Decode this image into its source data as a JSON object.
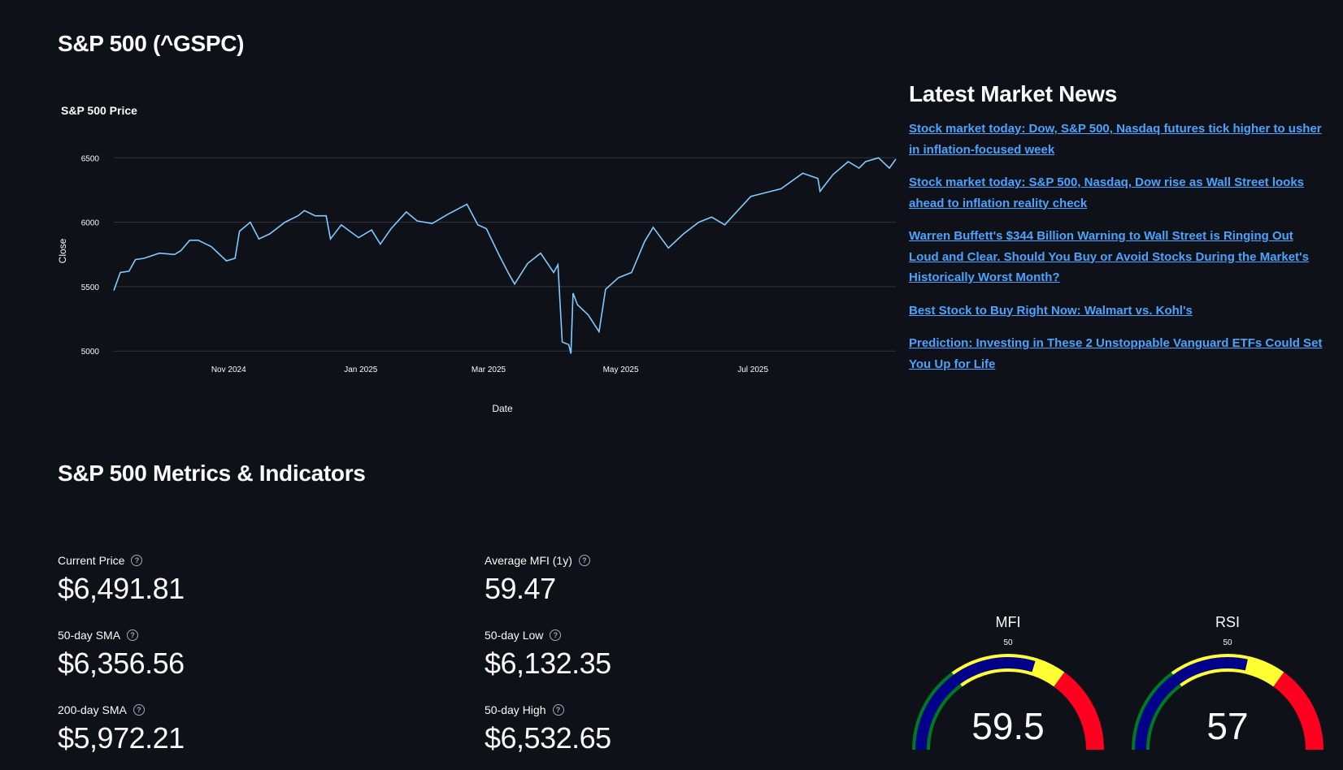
{
  "page": {
    "title": "S&P 500 (^GSPC)"
  },
  "chart_data": {
    "type": "line",
    "title": "S&P 500 Price",
    "xlabel": "Date",
    "ylabel": "Close",
    "ylim": [
      4970,
      6590
    ],
    "yticks": [
      5000,
      5500,
      6000,
      6500
    ],
    "xticks": [
      {
        "date": "2024-11-01",
        "label": "Nov 2024"
      },
      {
        "date": "2025-01-01",
        "label": "Jan 2025"
      },
      {
        "date": "2025-03-01",
        "label": "Mar 2025"
      },
      {
        "date": "2025-05-01",
        "label": "May 2025"
      },
      {
        "date": "2025-07-01",
        "label": "Jul 2025"
      }
    ],
    "xrange": [
      "2024-09-09",
      "2025-09-05"
    ],
    "line_color": "#83c9ff",
    "series": [
      {
        "x": [
          "2024-09-09",
          "2024-09-12",
          "2024-09-16",
          "2024-09-19",
          "2024-09-23",
          "2024-09-30",
          "2024-10-07",
          "2024-10-10",
          "2024-10-14",
          "2024-10-18",
          "2024-10-24",
          "2024-10-31",
          "2024-11-04",
          "2024-11-06",
          "2024-11-11",
          "2024-11-15",
          "2024-11-20",
          "2024-11-27",
          "2024-12-03",
          "2024-12-06",
          "2024-12-11",
          "2024-12-16",
          "2024-12-18",
          "2024-12-23",
          "2024-12-31",
          "2025-01-06",
          "2025-01-10",
          "2025-01-15",
          "2025-01-22",
          "2025-01-27",
          "2025-02-03",
          "2025-02-10",
          "2025-02-19",
          "2025-02-24",
          "2025-02-28",
          "2025-03-06",
          "2025-03-10",
          "2025-03-13",
          "2025-03-19",
          "2025-03-25",
          "2025-03-31",
          "2025-04-02",
          "2025-04-04",
          "2025-04-07",
          "2025-04-08",
          "2025-04-09",
          "2025-04-11",
          "2025-04-16",
          "2025-04-21",
          "2025-04-24",
          "2025-04-30",
          "2025-05-06",
          "2025-05-12",
          "2025-05-16",
          "2025-05-23",
          "2025-05-30",
          "2025-06-06",
          "2025-06-12",
          "2025-06-18",
          "2025-06-24",
          "2025-06-30",
          "2025-07-07",
          "2025-07-14",
          "2025-07-24",
          "2025-07-31",
          "2025-08-01",
          "2025-08-07",
          "2025-08-14",
          "2025-08-19",
          "2025-08-22",
          "2025-08-28",
          "2025-09-02",
          "2025-09-05"
        ],
        "y": [
          5470,
          5610,
          5620,
          5710,
          5720,
          5760,
          5750,
          5780,
          5860,
          5860,
          5810,
          5700,
          5720,
          5930,
          6000,
          5870,
          5910,
          6000,
          6050,
          6090,
          6050,
          6050,
          5870,
          5980,
          5880,
          5940,
          5830,
          5950,
          6080,
          6010,
          5990,
          6060,
          6140,
          5980,
          5950,
          5740,
          5610,
          5520,
          5680,
          5760,
          5610,
          5670,
          5070,
          5050,
          4980,
          5450,
          5360,
          5280,
          5150,
          5480,
          5570,
          5610,
          5850,
          5960,
          5800,
          5910,
          6000,
          6040,
          5980,
          6090,
          6200,
          6230,
          6260,
          6380,
          6340,
          6240,
          6370,
          6470,
          6420,
          6470,
          6500,
          6420,
          6490
        ]
      }
    ]
  },
  "news": {
    "title": "Latest Market News",
    "items": [
      "Stock market today: Dow, S&P 500, Nasdaq futures tick higher to usher in inflation-focused week",
      "Stock market today: S&P 500, Nasdaq, Dow rise as Wall Street looks ahead to inflation reality check",
      "Warren Buffett's $344 Billion Warning to Wall Street is Ringing Out Loud and Clear. Should You Buy or Avoid Stocks During the Market's Historically Worst Month?",
      "Best Stock to Buy Right Now: Walmart vs. Kohl's",
      "Prediction: Investing in These 2 Unstoppable Vanguard ETFs Could Set You Up for Life"
    ]
  },
  "metrics": {
    "title": "S&P 500 Metrics & Indicators",
    "current_price": {
      "label": "Current Price",
      "value": "$6,491.81"
    },
    "sma50": {
      "label": "50-day SMA",
      "value": "$6,356.56"
    },
    "sma200": {
      "label": "200-day SMA",
      "value": "$5,972.21"
    },
    "avg_mfi": {
      "label": "Average MFI (1y)",
      "value": "59.47"
    },
    "low50": {
      "label": "50-day Low",
      "value": "$6,132.35"
    },
    "high50": {
      "label": "50-day High",
      "value": "$6,532.65"
    }
  },
  "gauges": [
    {
      "title": "MFI",
      "value": 59.5,
      "display": "59.5",
      "tick": "50",
      "range": [
        0,
        100
      ]
    },
    {
      "title": "RSI",
      "value": 57,
      "display": "57",
      "tick": "50",
      "range": [
        0,
        100
      ]
    }
  ],
  "gauge_colors": {
    "low": "#00781e",
    "mid": "#ffff33",
    "high": "#ff0020",
    "bar": "#00008b"
  }
}
